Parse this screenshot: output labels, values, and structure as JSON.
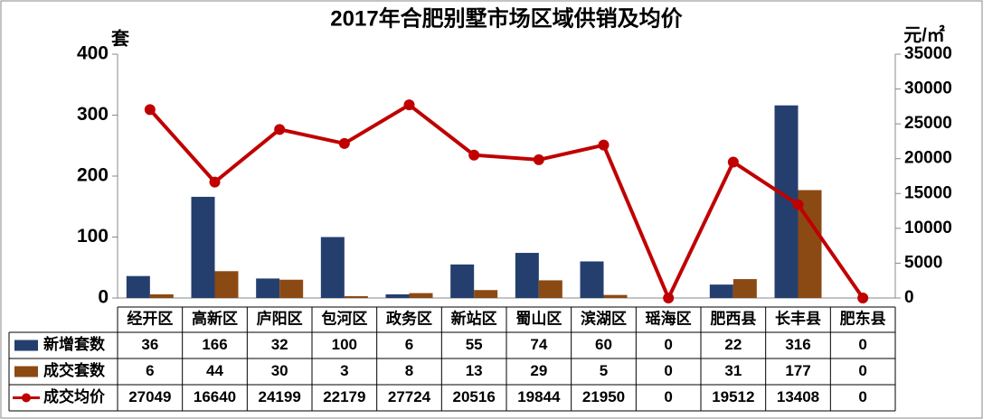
{
  "chart_data": {
    "type": "bar",
    "title": "2017年合肥别墅市场区域供销及均价",
    "y_label": "套",
    "y2_label": "元/㎡",
    "categories": [
      "经开区",
      "高新区",
      "庐阳区",
      "包河区",
      "政务区",
      "新站区",
      "蜀山区",
      "滨湖区",
      "瑶海区",
      "肥西县",
      "长丰县",
      "肥东县"
    ],
    "series": [
      {
        "name": "新增套数",
        "color": "#243f6e",
        "values": [
          36,
          166,
          32,
          100,
          6,
          55,
          74,
          60,
          0,
          22,
          316,
          0
        ]
      },
      {
        "name": "成交套数",
        "color": "#8b4a14",
        "values": [
          6,
          44,
          30,
          3,
          8,
          13,
          29,
          5,
          0,
          31,
          177,
          0
        ]
      },
      {
        "name": "成交均价",
        "color": "#c00000",
        "type": "line",
        "axis": "y2",
        "values": [
          27049,
          16640,
          24199,
          22179,
          27724,
          20516,
          19844,
          21950,
          0,
          19512,
          13408,
          0
        ]
      }
    ],
    "ylim": [
      0,
      400
    ],
    "yticks": [
      0,
      100,
      200,
      300,
      400
    ],
    "y2lim": [
      0,
      35000
    ],
    "y2ticks": [
      0,
      5000,
      10000,
      15000,
      20000,
      25000,
      30000,
      35000
    ],
    "grid": false
  }
}
